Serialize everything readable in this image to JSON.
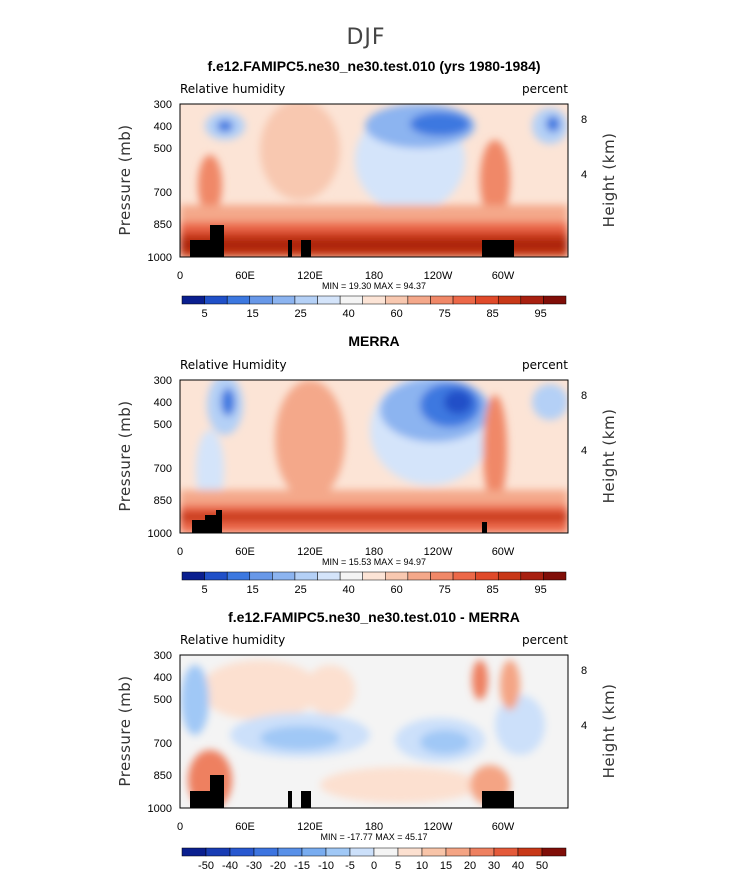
{
  "figure": {
    "title": "DJF"
  },
  "chart_data": [
    {
      "type": "heatmap",
      "title": "f.e12.FAMIPC5.ne30_ne30.test.010 (yrs 1980-1984)",
      "left_label": "Relative humidity",
      "right_label": "percent",
      "ylabel": "Pressure (mb)",
      "ylabel_right": "Height (km)",
      "x_ticks": [
        "0",
        "60E",
        "120E",
        "180",
        "120W",
        "60W"
      ],
      "y_ticks": [
        "300",
        "400",
        "500",
        "700",
        "850",
        "1000"
      ],
      "y_right_ticks": [
        "8",
        "4"
      ],
      "min_max": "MIN =   19.30   MAX =   94.37",
      "colorbar_labels": [
        "5",
        "15",
        "25",
        "40",
        "60",
        "75",
        "85",
        "95"
      ],
      "colorbar_colors": [
        "#0a1f8f",
        "#2050c8",
        "#3c78e0",
        "#6898e8",
        "#8cb4f0",
        "#b4d0f6",
        "#d4e4fa",
        "#f4f4f4",
        "#fce4d6",
        "#f8c8b0",
        "#f4a88a",
        "#f08868",
        "#ec6848",
        "#e04a2a",
        "#c83818",
        "#a82010",
        "#800e08"
      ],
      "field": "model"
    },
    {
      "type": "heatmap",
      "title": "MERRA",
      "left_label": "Relative Humidity",
      "right_label": "percent",
      "ylabel": "Pressure (mb)",
      "ylabel_right": "Height (km)",
      "x_ticks": [
        "0",
        "60E",
        "120E",
        "180",
        "120W",
        "60W"
      ],
      "y_ticks": [
        "300",
        "400",
        "500",
        "700",
        "850",
        "1000"
      ],
      "y_right_ticks": [
        "8",
        "4"
      ],
      "min_max": "MIN =   15.53   MAX =   94.97",
      "colorbar_labels": [
        "5",
        "15",
        "25",
        "40",
        "60",
        "75",
        "85",
        "95"
      ],
      "colorbar_colors": [
        "#0a1f8f",
        "#2050c8",
        "#3c78e0",
        "#6898e8",
        "#8cb4f0",
        "#b4d0f6",
        "#d4e4fa",
        "#f4f4f4",
        "#fce4d6",
        "#f8c8b0",
        "#f4a88a",
        "#f08868",
        "#ec6848",
        "#e04a2a",
        "#c83818",
        "#a82010",
        "#800e08"
      ],
      "field": "obs"
    },
    {
      "type": "heatmap",
      "title": "f.e12.FAMIPC5.ne30_ne30.test.010 - MERRA",
      "left_label": "Relative humidity",
      "right_label": "percent",
      "ylabel": "Pressure (mb)",
      "ylabel_right": "Height (km)",
      "x_ticks": [
        "0",
        "60E",
        "120E",
        "180",
        "120W",
        "60W"
      ],
      "y_ticks": [
        "300",
        "400",
        "500",
        "700",
        "850",
        "1000"
      ],
      "y_right_ticks": [
        "8",
        "4"
      ],
      "min_max": "MIN = -17.77   MAX =   45.17",
      "colorbar_labels": [
        "-50",
        "-40",
        "-30",
        "-20",
        "-15",
        "-10",
        "-5",
        "0",
        "5",
        "10",
        "15",
        "20",
        "30",
        "40",
        "50"
      ],
      "colorbar_colors": [
        "#0a1f8f",
        "#183cb4",
        "#2858d0",
        "#3c74e0",
        "#5890e8",
        "#78acf0",
        "#a0c8f6",
        "#cce0fa",
        "#f4f4f4",
        "#fce0d0",
        "#f8c4a8",
        "#f4a484",
        "#ee8060",
        "#e45a3a",
        "#c83818",
        "#800e08"
      ],
      "field": "diff"
    }
  ]
}
